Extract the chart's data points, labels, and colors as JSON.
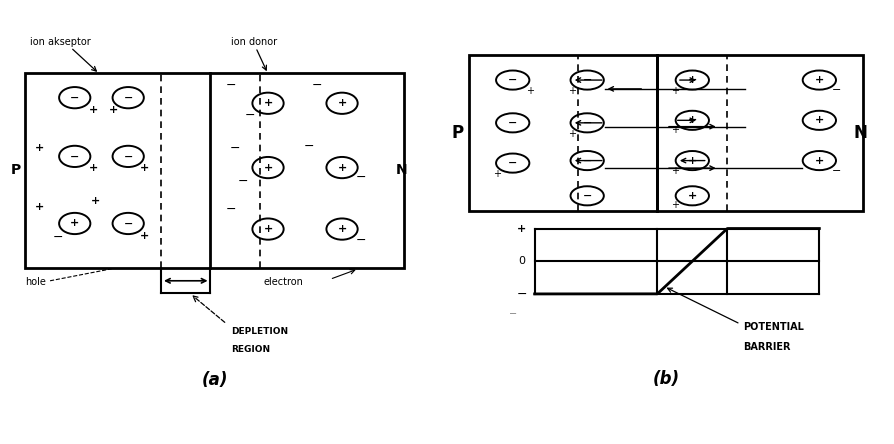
{
  "fig_bg": "#ffffff",
  "title_a": "(a)",
  "title_b": "(b)",
  "label_ion_acceptor": "ion akseptor",
  "label_ion_donor": "ion donor",
  "label_hole": "hole",
  "label_electron": "electron",
  "label_depletion_1": "DEPLETION",
  "label_depletion_2": "REGION",
  "label_P": "P",
  "label_N": "N",
  "label_potential_1": "POTENTIAL",
  "label_potential_2": "BARRIER"
}
